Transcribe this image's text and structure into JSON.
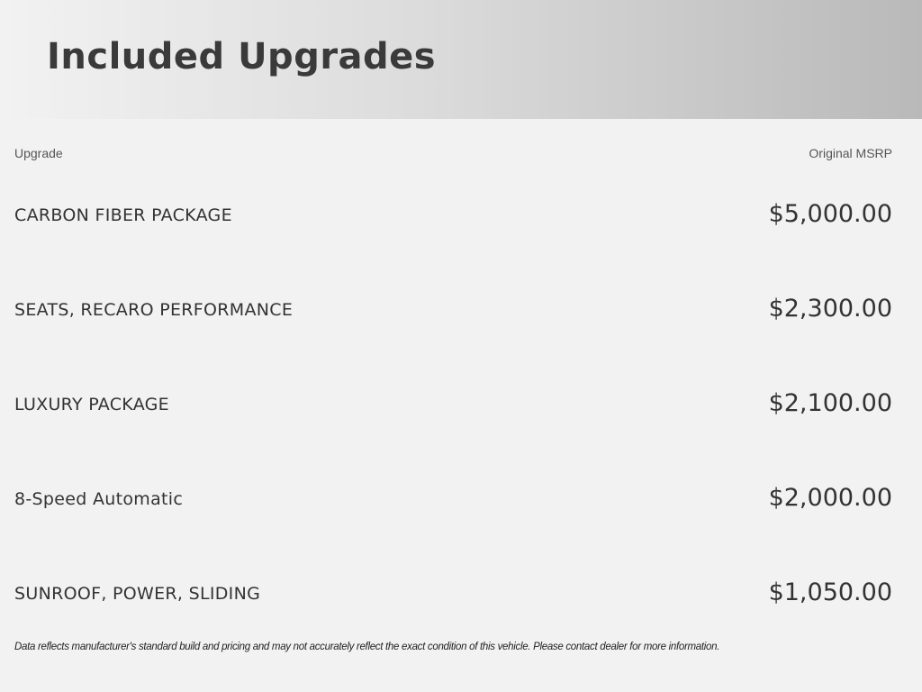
{
  "header": {
    "title": "Included Upgrades"
  },
  "table": {
    "columns": [
      "Upgrade",
      "Original MSRP"
    ],
    "rows": [
      {
        "upgrade": "CARBON FIBER PACKAGE",
        "msrp": "$5,000.00"
      },
      {
        "upgrade": "SEATS, RECARO PERFORMANCE",
        "msrp": "$2,300.00"
      },
      {
        "upgrade": "LUXURY PACKAGE",
        "msrp": "$2,100.00"
      },
      {
        "upgrade": "8-Speed Automatic",
        "msrp": "$2,000.00"
      },
      {
        "upgrade": "SUNROOF, POWER, SLIDING",
        "msrp": "$1,050.00"
      }
    ]
  },
  "footer": {
    "disclaimer": "Data reflects manufacturer's standard build and pricing and may not accurately reflect the exact condition of this vehicle. Please contact dealer for more information."
  }
}
